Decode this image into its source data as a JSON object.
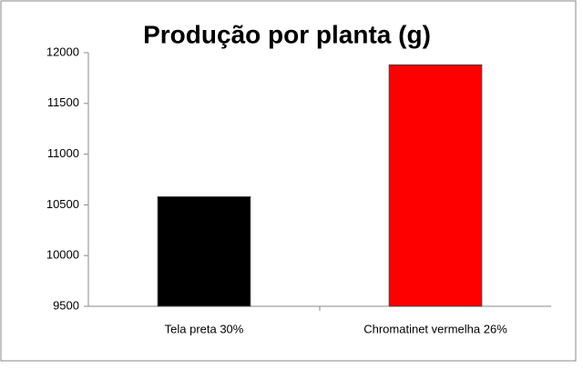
{
  "chart_data": {
    "type": "bar",
    "title": "Produção por planta (g)",
    "categories": [
      "Tela preta 30%",
      "Chromatinet vermelha 26%"
    ],
    "values": [
      10580,
      11880
    ],
    "colors": [
      "#000000",
      "#ff0000"
    ],
    "ylim": [
      9500,
      12000
    ],
    "yticks": [
      9500,
      10000,
      10500,
      11000,
      11500,
      12000
    ],
    "grid": false
  }
}
